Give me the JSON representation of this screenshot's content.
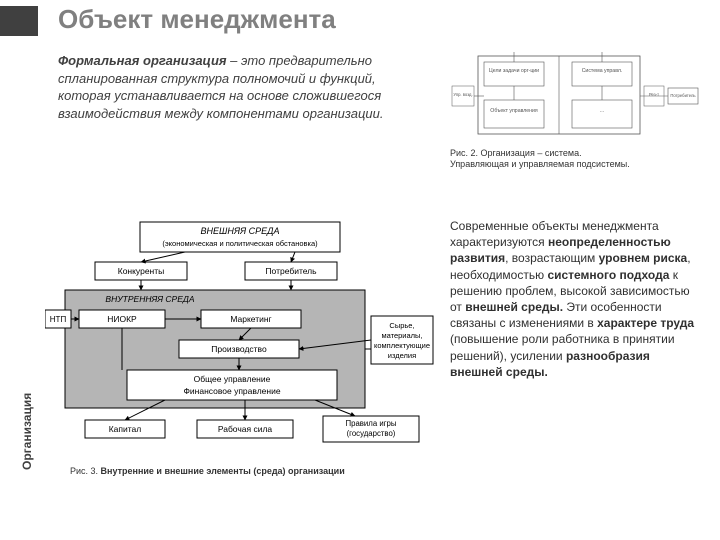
{
  "title": "Объект менеджмента",
  "intro_lead": "Формальная организация",
  "intro_rest": " – это предварительно спланированная структура полномочий и функций, которая устанавливается на основе сложившегося взаимодействия между компонентами организации.",
  "side_label": "Организация",
  "fig2": {
    "caption_l1": "Рис. 2. Организация – система.",
    "caption_l2": "Управляющая и управляемая подсистемы.",
    "boxes": {
      "tl": "Цели задачи орг-ции",
      "tr": "Система управл.",
      "bl": "Объект управления",
      "br": "…",
      "left_small": "Упр. возд.",
      "right_small": "Рез-т",
      "far_right": "Потребитель"
    },
    "colors": {
      "stroke": "#444444",
      "bg": "#ffffff",
      "text": "#555555"
    }
  },
  "fig3": {
    "outer_title_l1": "ВНЕШНЯЯ  СРЕДА",
    "outer_title_l2": "(экономическая и политическая обстановка)",
    "inner_title": "ВНУТРЕННЯЯ  СРЕДА",
    "top_left": "Конкуренты",
    "top_right": "Потребитель",
    "nti": "НТП",
    "niokp": "НИОКР",
    "marketing": "Маркетинг",
    "production": "Производство",
    "mgmt_l1": "Общее управление",
    "mgmt_l2": "Финансовое управление",
    "bottom_left": "Капитал",
    "bottom_mid": "Рабочая  сила",
    "bottom_right_l1": "Правила  игры",
    "bottom_right_l2": "(государство)",
    "right_box_l1": "Сырье,",
    "right_box_l2": "материалы,",
    "right_box_l3": "комплектующие",
    "right_box_l4": "изделия",
    "caption_prefix": "Рис. 3. ",
    "caption_bold": "Внутренние и внешние элементы (среда) организации",
    "colors": {
      "box_stroke": "#000000",
      "box_fill": "#ffffff",
      "inner_fill": "#b5b5b5",
      "page_bg": "#ffffff",
      "text": "#000000"
    }
  },
  "body_right_html_parts": [
    {
      "t": "Современные объекты менеджмента характеризуются ",
      "b": false
    },
    {
      "t": "неопределенностью развития",
      "b": true
    },
    {
      "t": ", возрастающим ",
      "b": false
    },
    {
      "t": "уровнем риска",
      "b": true
    },
    {
      "t": ", необходимостью ",
      "b": false
    },
    {
      "t": "системного подхода",
      "b": true
    },
    {
      "t": " к решению проблем, высокой зависимостью от ",
      "b": false
    },
    {
      "t": "внешней среды.",
      "b": true
    },
    {
      "t": " Эти особенности связаны с изменениями в ",
      "b": false
    },
    {
      "t": "характере труда ",
      "b": true
    },
    {
      "t": "(повышение роли работника в принятии решений), усилении ",
      "b": false
    },
    {
      "t": "разнообразия внешней среды.",
      "b": true
    }
  ]
}
